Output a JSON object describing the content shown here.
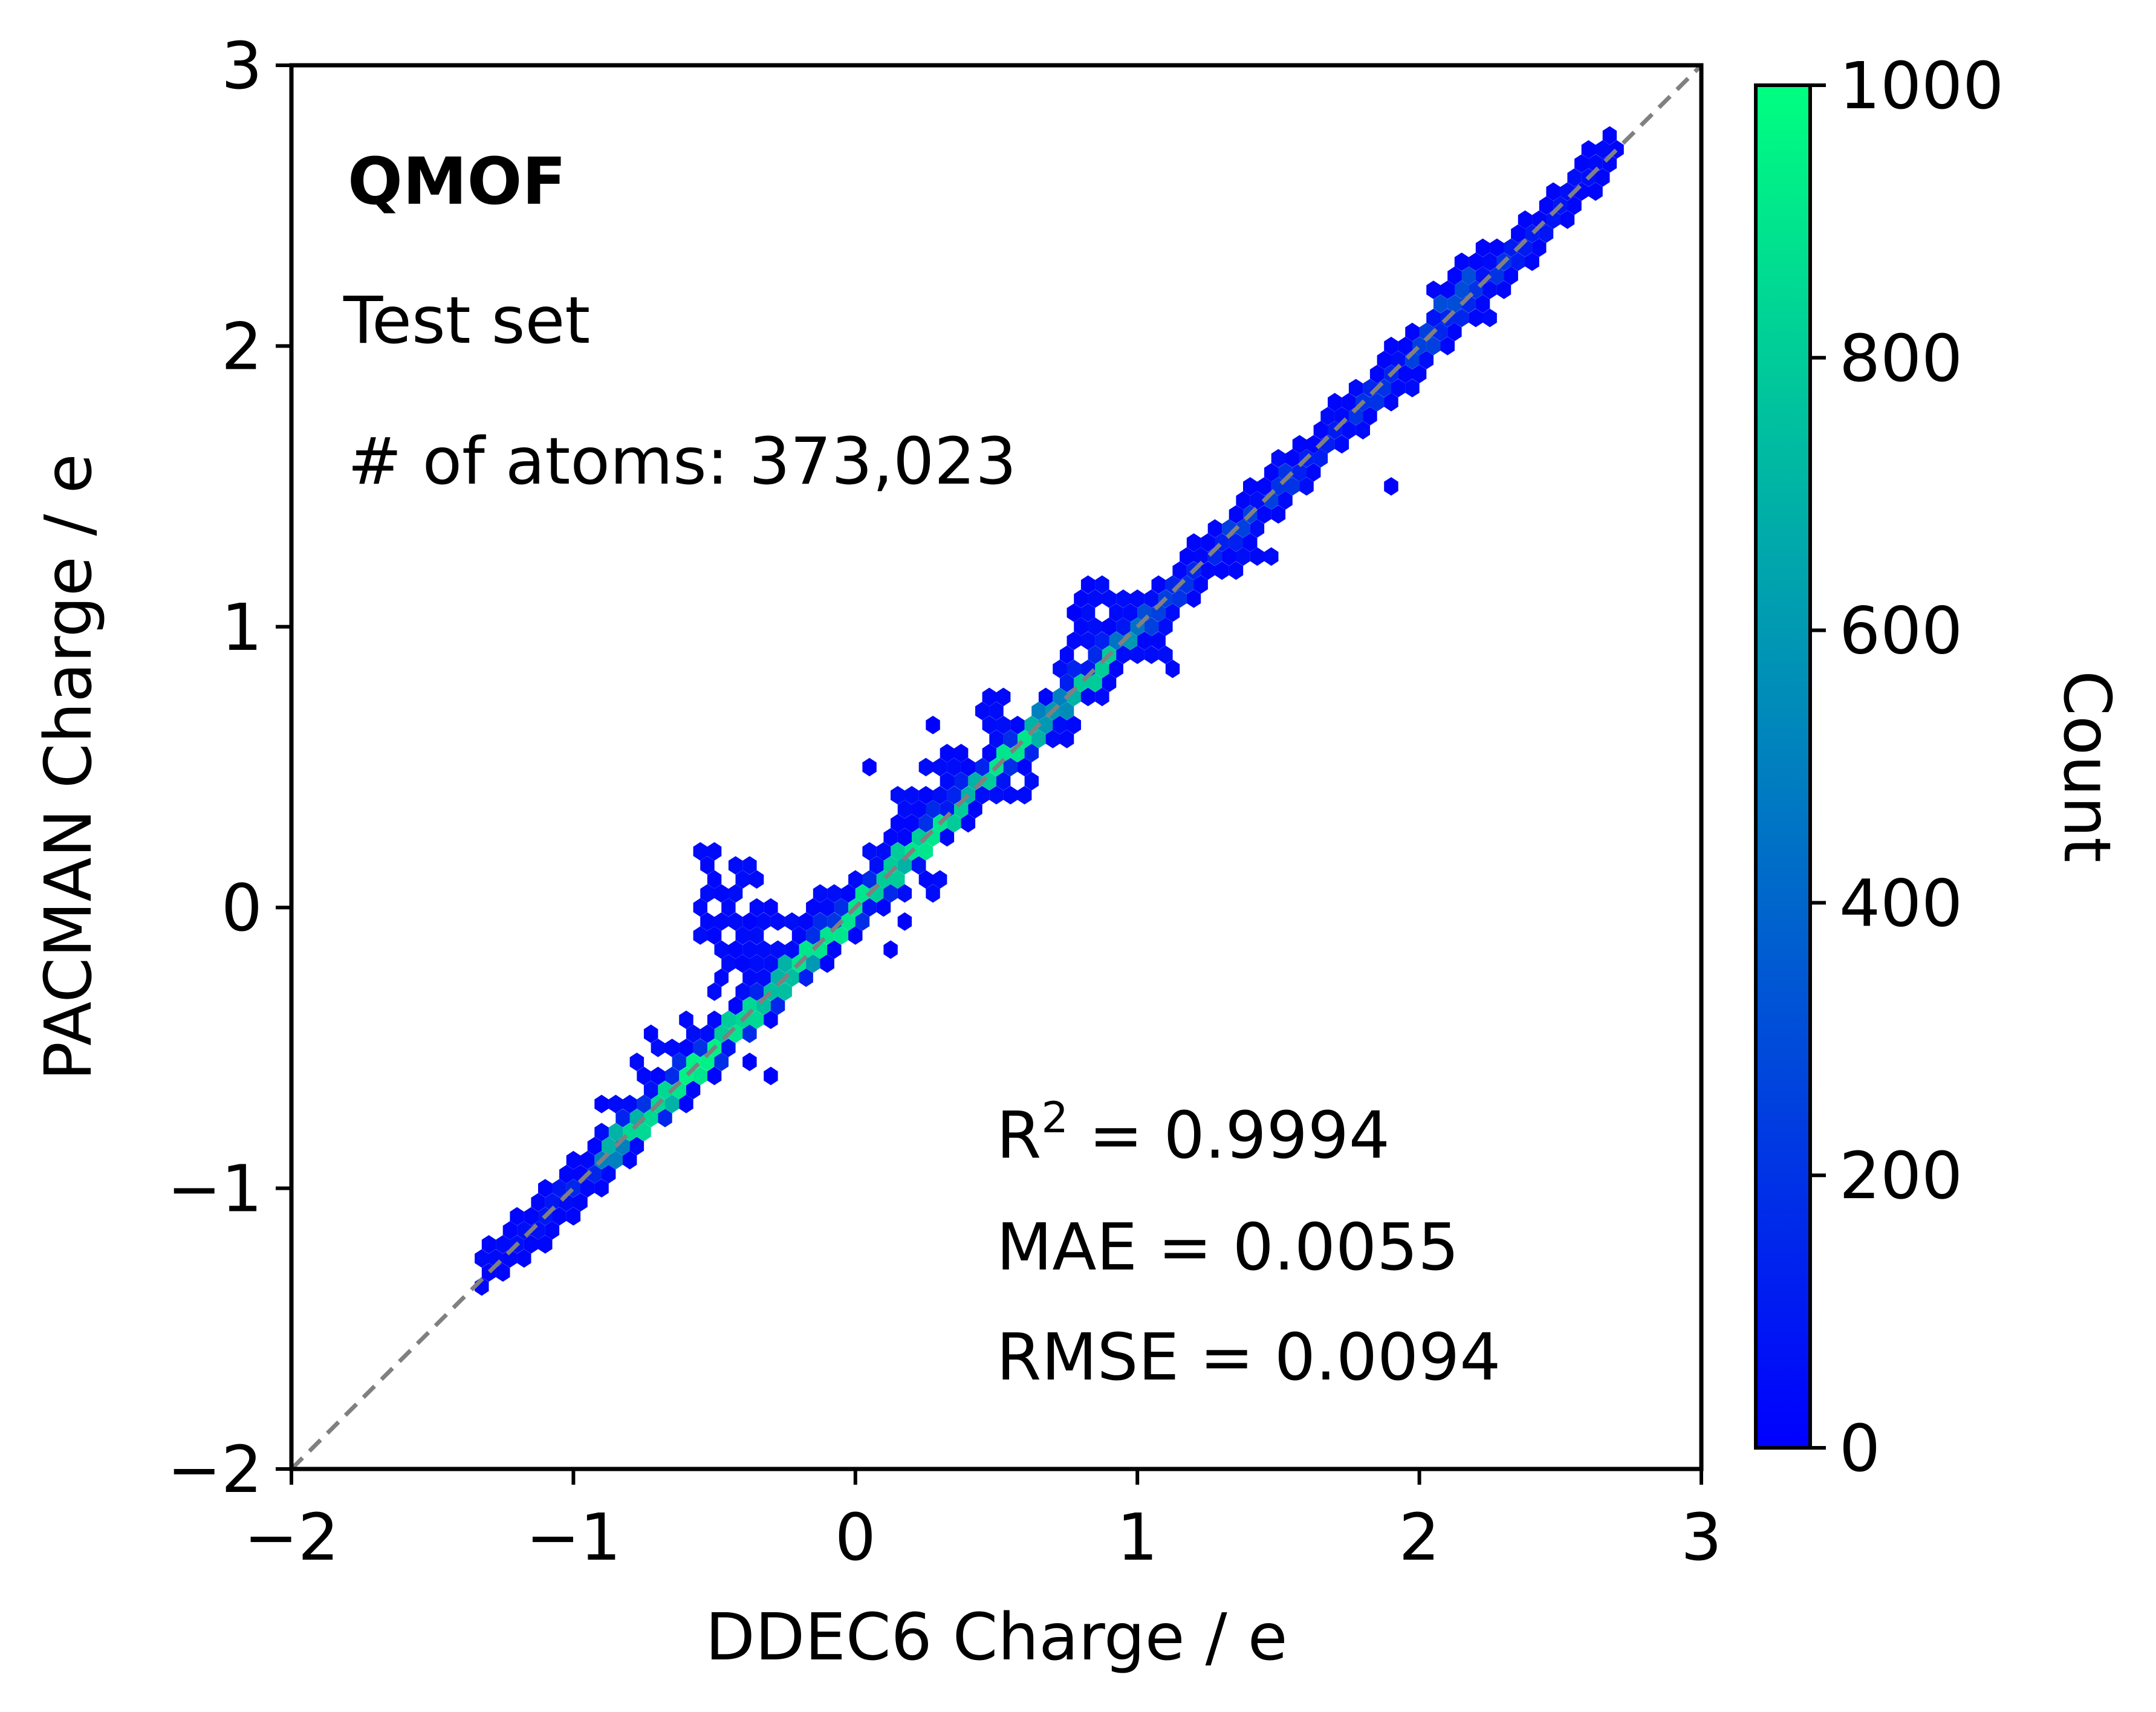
{
  "chart_data": {
    "type": "hexbin",
    "xlabel": "DDEC6 Charge / e",
    "ylabel": "PACMAN Charge / e",
    "xlim": [
      -2,
      3
    ],
    "ylim": [
      -2,
      3
    ],
    "xticks": [
      -2,
      -1,
      0,
      1,
      2,
      3
    ],
    "yticks": [
      -2,
      -1,
      0,
      1,
      2,
      3
    ],
    "xtick_labels": [
      "−2",
      "−1",
      "0",
      "1",
      "2",
      "3"
    ],
    "ytick_labels": [
      "−2",
      "−1",
      "0",
      "1",
      "2",
      "3"
    ],
    "grid": false,
    "reference_line": {
      "style": "dashed",
      "color": "#808080",
      "from": [
        -2,
        -2
      ],
      "to": [
        3,
        3
      ]
    },
    "annotations": {
      "dataset": "QMOF",
      "subset": "Test set",
      "atoms": "# of atoms: 373,023",
      "r2_prefix": "R",
      "r2_sup": "2",
      "r2_value": " = 0.9994",
      "mae": "MAE = 0.0055",
      "rmse": "RMSE = 0.0094"
    },
    "colorbar": {
      "label": "Count",
      "range": [
        0,
        1000
      ],
      "ticks": [
        0,
        200,
        400,
        600,
        800,
        1000
      ],
      "tick_labels": [
        "0",
        "200",
        "400",
        "600",
        "800",
        "1000"
      ],
      "colormap": "winter",
      "color_low": "#0000ff",
      "color_high": "#00ff80"
    },
    "diagonal_band": [
      [
        -1.25,
        -1.22,
        40
      ],
      [
        -1.15,
        -1.13,
        60
      ],
      [
        -1.05,
        -1.04,
        90
      ],
      [
        -0.95,
        -0.95,
        150
      ],
      [
        -0.85,
        -0.86,
        500
      ],
      [
        -0.8,
        -0.79,
        700
      ],
      [
        -0.75,
        -0.75,
        850
      ],
      [
        -0.7,
        -0.7,
        700
      ],
      [
        -0.65,
        -0.64,
        850
      ],
      [
        -0.6,
        -0.6,
        900
      ],
      [
        -0.55,
        -0.55,
        950
      ],
      [
        -0.5,
        -0.5,
        900
      ],
      [
        -0.45,
        -0.44,
        800
      ],
      [
        -0.4,
        -0.4,
        850
      ],
      [
        -0.35,
        -0.34,
        700
      ],
      [
        -0.3,
        -0.3,
        750
      ],
      [
        -0.25,
        -0.24,
        700
      ],
      [
        -0.2,
        -0.2,
        600
      ],
      [
        -0.15,
        -0.14,
        900
      ],
      [
        -0.1,
        -0.1,
        850
      ],
      [
        -0.05,
        -0.05,
        900
      ],
      [
        0.0,
        0.0,
        900
      ],
      [
        0.05,
        0.06,
        800
      ],
      [
        0.1,
        0.1,
        800
      ],
      [
        0.15,
        0.15,
        700
      ],
      [
        0.2,
        0.21,
        800
      ],
      [
        0.25,
        0.25,
        900
      ],
      [
        0.3,
        0.3,
        800
      ],
      [
        0.35,
        0.35,
        700
      ],
      [
        0.4,
        0.4,
        650
      ],
      [
        0.45,
        0.46,
        700
      ],
      [
        0.5,
        0.51,
        800
      ],
      [
        0.55,
        0.55,
        900
      ],
      [
        0.6,
        0.6,
        700
      ],
      [
        0.65,
        0.65,
        600
      ],
      [
        0.7,
        0.71,
        500
      ],
      [
        0.75,
        0.75,
        550
      ],
      [
        0.8,
        0.8,
        700
      ],
      [
        0.85,
        0.85,
        800
      ],
      [
        0.9,
        0.9,
        600
      ],
      [
        0.95,
        0.96,
        450
      ],
      [
        1.0,
        1.01,
        300
      ],
      [
        1.05,
        1.05,
        250
      ],
      [
        1.1,
        1.1,
        200
      ],
      [
        1.2,
        1.2,
        150
      ],
      [
        1.3,
        1.3,
        120
      ],
      [
        1.4,
        1.4,
        250
      ],
      [
        1.5,
        1.5,
        200
      ],
      [
        1.6,
        1.6,
        120
      ],
      [
        1.7,
        1.7,
        100
      ],
      [
        1.8,
        1.8,
        200
      ],
      [
        1.9,
        1.9,
        150
      ],
      [
        2.0,
        2.0,
        250
      ],
      [
        2.1,
        2.1,
        150
      ],
      [
        2.15,
        2.2,
        300
      ],
      [
        2.25,
        2.25,
        200
      ],
      [
        2.35,
        2.35,
        100
      ],
      [
        2.45,
        2.45,
        80
      ],
      [
        2.55,
        2.56,
        60
      ],
      [
        2.62,
        2.63,
        40
      ]
    ],
    "clusters": [
      [
        -0.85,
        -0.75,
        0.06,
        0.08,
        10
      ],
      [
        -0.7,
        -0.55,
        0.06,
        0.12,
        12
      ],
      [
        -0.55,
        -0.45,
        0.05,
        0.15,
        10
      ],
      [
        -0.45,
        0.05,
        0.1,
        0.15,
        40
      ],
      [
        -0.4,
        -0.2,
        0.08,
        0.12,
        30
      ],
      [
        -0.25,
        -0.15,
        0.08,
        0.1,
        20
      ],
      [
        -0.1,
        0.0,
        0.06,
        0.08,
        12
      ],
      [
        0.05,
        0.1,
        0.05,
        0.1,
        14
      ],
      [
        0.2,
        0.3,
        0.08,
        0.1,
        18
      ],
      [
        0.3,
        0.45,
        0.06,
        0.12,
        15
      ],
      [
        0.5,
        0.65,
        0.06,
        0.1,
        15
      ],
      [
        0.55,
        0.45,
        0.08,
        0.08,
        18
      ],
      [
        0.8,
        0.85,
        0.08,
        0.12,
        20
      ],
      [
        0.9,
        1.05,
        0.1,
        0.1,
        35
      ],
      [
        1.05,
        0.95,
        0.08,
        0.1,
        20
      ],
      [
        1.4,
        1.3,
        0.06,
        0.08,
        15
      ],
      [
        1.55,
        1.55,
        0.05,
        0.08,
        12
      ],
      [
        1.75,
        1.7,
        0.06,
        0.06,
        12
      ],
      [
        2.2,
        2.15,
        0.05,
        0.06,
        10
      ],
      [
        0.7,
        0.65,
        0.06,
        0.06,
        10
      ],
      [
        -0.3,
        -0.05,
        0.06,
        0.06,
        10
      ],
      [
        0.25,
        0.1,
        0.06,
        0.06,
        10
      ],
      [
        1.15,
        1.15,
        0.05,
        0.05,
        8
      ],
      [
        1.95,
        1.9,
        0.05,
        0.05,
        8
      ]
    ],
    "outliers": [
      [
        1.92,
        1.48,
        1
      ],
      [
        0.75,
        1.03,
        1
      ],
      [
        0.27,
        0.65,
        1
      ],
      [
        0.07,
        0.52,
        1
      ],
      [
        0.14,
        0.39,
        1
      ],
      [
        0.19,
        -0.05,
        1
      ],
      [
        0.14,
        -0.13,
        1
      ],
      [
        -0.28,
        -0.58,
        1
      ],
      [
        -0.37,
        -0.56,
        1
      ],
      [
        -0.67,
        -0.76,
        1
      ],
      [
        0.1,
        0.19,
        1
      ],
      [
        -0.44,
        0.0,
        1
      ]
    ]
  }
}
